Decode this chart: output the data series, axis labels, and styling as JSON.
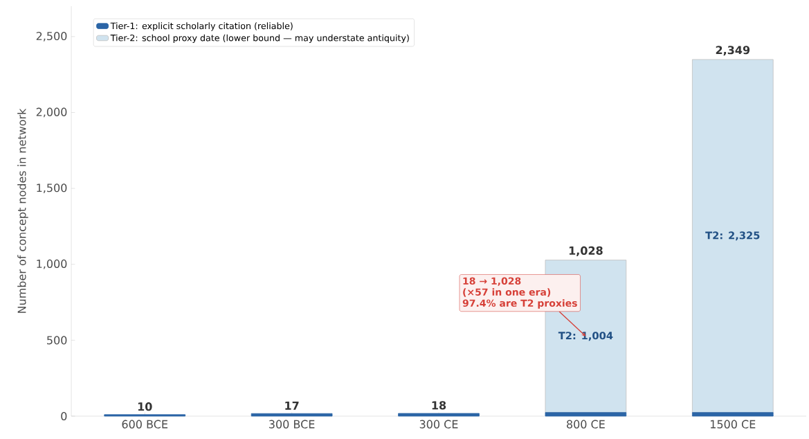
{
  "chart_data": {
    "type": "bar",
    "stacked": true,
    "ylabel": "Number of concept nodes in network",
    "categories": [
      "600 BCE",
      "300 BCE",
      "300 CE",
      "800 CE",
      "1500 CE"
    ],
    "series": [
      {
        "name": "Tier-1: explicit scholarly citation (reliable)",
        "color": "#2b65a6",
        "values": [
          10,
          17,
          18,
          24,
          24
        ]
      },
      {
        "name": "Tier-2: school proxy date (lower bound — may understate antiquity)",
        "color": "#d0e3ef",
        "values": [
          0,
          0,
          0,
          1004,
          2325
        ],
        "value_labels": [
          null,
          null,
          null,
          "T2: 1,004",
          "T2: 2,325"
        ]
      }
    ],
    "totals": [
      "10",
      "17",
      "18",
      "1,028",
      "2,349"
    ],
    "ylim": [
      0,
      2700
    ],
    "yticks": [
      0,
      500,
      {
        "value": 1000,
        "label": "1,000"
      },
      {
        "value": 1500,
        "label": "1,500"
      },
      {
        "value": 2000,
        "label": "2,000"
      },
      {
        "value": 2500,
        "label": "2,500"
      }
    ],
    "legend": "top left",
    "annotations": [
      "18 → 1,028",
      "(×57 in one era)",
      "97.4% are T2 proxies"
    ]
  }
}
